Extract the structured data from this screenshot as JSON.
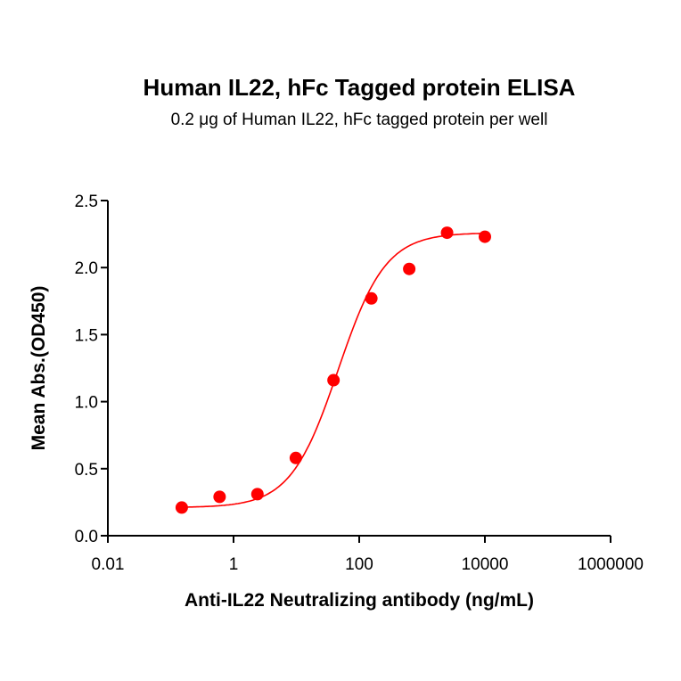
{
  "chart_data": {
    "type": "scatter",
    "title": "Human IL22, hFc Tagged protein ELISA",
    "subtitle": "0.2 μg of Human IL22, hFc tagged protein per well",
    "xlabel": "Anti-IL22 Neutralizing antibody (ng/mL)",
    "ylabel": "Mean Abs.(OD450)",
    "xscale": "log",
    "xlim": [
      0.01,
      1000000
    ],
    "ylim": [
      0,
      2.5
    ],
    "xticks": [
      0.01,
      1,
      100,
      10000,
      1000000
    ],
    "xtick_labels": [
      "0.01",
      "1",
      "100",
      "10000",
      "1000000"
    ],
    "yticks": [
      0,
      0.5,
      1.0,
      1.5,
      2.0,
      2.5
    ],
    "ytick_labels": [
      "0.0",
      "0.5",
      "1.0",
      "1.5",
      "2.0",
      "2.5"
    ],
    "grid": false,
    "color": "#ff0000",
    "points": {
      "x": [
        0.15,
        0.6,
        2.4,
        9.8,
        39,
        156,
        625,
        2500,
        10000
      ],
      "y": [
        0.21,
        0.29,
        0.31,
        0.58,
        1.16,
        1.77,
        1.99,
        2.26,
        2.23
      ]
    },
    "fit": {
      "model": "4PL",
      "bottom": 0.21,
      "top": 2.26,
      "ec50": 46,
      "hill": 1.15
    }
  }
}
